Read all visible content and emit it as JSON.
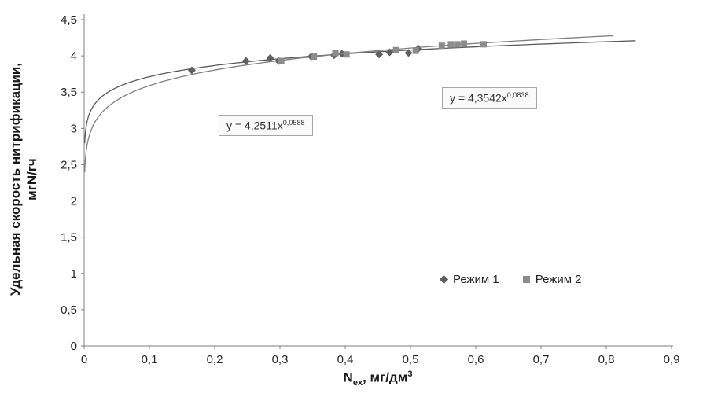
{
  "chart_data": {
    "type": "scatter",
    "title": "",
    "xlabel": {
      "base": "N",
      "sub": "ex",
      "rest": ", мг/дм",
      "sup": "3"
    },
    "ylabel_line1": "Удельная скорость нитрификации,",
    "ylabel_line2": "мгN/гч",
    "xlim": [
      0,
      0.9
    ],
    "ylim": [
      0,
      4.5
    ],
    "x_tick_values": [
      0,
      0.1,
      0.2,
      0.3,
      0.4,
      0.5,
      0.6,
      0.7,
      0.8,
      0.9
    ],
    "x_tick_labels": [
      "0",
      "0,1",
      "0,2",
      "0,3",
      "0,4",
      "0,5",
      "0,6",
      "0,7",
      "0,8",
      "0,9"
    ],
    "y_tick_values": [
      0,
      0.5,
      1,
      1.5,
      2,
      2.5,
      3,
      3.5,
      4,
      4.5
    ],
    "y_tick_labels": [
      "0",
      "0,5",
      "1",
      "1,5",
      "2",
      "2,5",
      "3",
      "3,5",
      "4",
      "4,5"
    ],
    "grid": false,
    "legend_position": "inside-bottom-right",
    "series": [
      {
        "name": "Режим 1",
        "marker": "diamond",
        "marker_color": "#5f5f5f",
        "line_color": "#595959",
        "points": [
          [
            0.165,
            3.8
          ],
          [
            0.248,
            3.93
          ],
          [
            0.285,
            3.97
          ],
          [
            0.298,
            3.93
          ],
          [
            0.348,
            3.99
          ],
          [
            0.383,
            4.01
          ],
          [
            0.395,
            4.03
          ],
          [
            0.452,
            4.02
          ],
          [
            0.468,
            4.05
          ],
          [
            0.497,
            4.04
          ],
          [
            0.512,
            4.1
          ]
        ],
        "trend": {
          "type": "power",
          "a": 4.2511,
          "b": 0.0588,
          "x_start": 0.0008,
          "x_end": 0.845
        },
        "equation": {
          "base": "y = 4,2511x",
          "exp": "0,0588"
        }
      },
      {
        "name": "Режим 2",
        "marker": "square",
        "marker_color": "#8c8c8c",
        "line_color": "#7f7f7f",
        "points": [
          [
            0.302,
            3.93
          ],
          [
            0.352,
            3.99
          ],
          [
            0.385,
            4.04
          ],
          [
            0.402,
            4.02
          ],
          [
            0.478,
            4.08
          ],
          [
            0.508,
            4.07
          ],
          [
            0.548,
            4.14
          ],
          [
            0.562,
            4.16
          ],
          [
            0.572,
            4.16
          ],
          [
            0.582,
            4.17
          ],
          [
            0.612,
            4.16
          ]
        ],
        "trend": {
          "type": "power",
          "a": 4.3542,
          "b": 0.0838,
          "x_start": 0.0008,
          "x_end": 0.81
        },
        "equation": {
          "base": "y = 4,3542x",
          "exp": "0,0838"
        }
      }
    ]
  }
}
